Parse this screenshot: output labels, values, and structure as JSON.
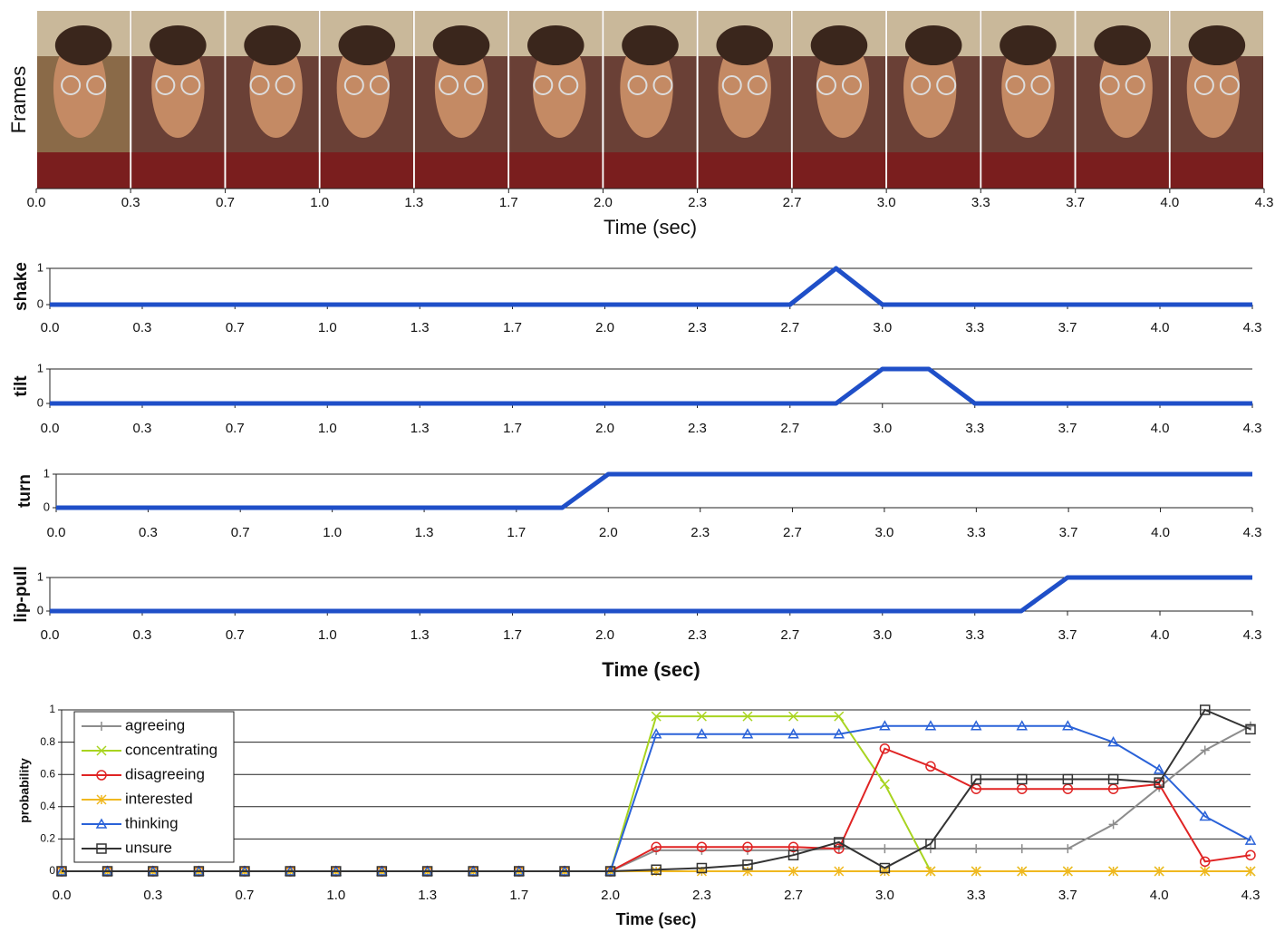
{
  "chart_data": [
    {
      "type": "frames",
      "ylabel": "Frames",
      "xlabel": "Time (sec)",
      "xlim": [
        0,
        4.333
      ],
      "xticks": [
        {
          "value": 0,
          "label": "0.0"
        },
        {
          "value": 0.333,
          "label": "0.3"
        },
        {
          "value": 0.667,
          "label": "0.7"
        },
        {
          "value": 1,
          "label": "1.0"
        },
        {
          "value": 1.333,
          "label": "1.3"
        },
        {
          "value": 1.667,
          "label": "1.7"
        },
        {
          "value": 2,
          "label": "2.0"
        },
        {
          "value": 2.333,
          "label": "2.3"
        },
        {
          "value": 2.667,
          "label": "2.7"
        },
        {
          "value": 3,
          "label": "3.0"
        },
        {
          "value": 3.333,
          "label": "3.3"
        },
        {
          "value": 3.667,
          "label": "3.7"
        },
        {
          "value": 4,
          "label": "4.0"
        },
        {
          "value": 4.333,
          "label": "4.3"
        }
      ]
    },
    {
      "type": "line",
      "ylabel": "shake",
      "color": "#1f4fc8",
      "xlim": [
        0,
        4.333
      ],
      "ylim": [
        0,
        1
      ],
      "yticks": [
        0,
        1
      ],
      "x": [
        0,
        2.667,
        2.833,
        3,
        4.333
      ],
      "values": [
        0,
        0,
        1,
        0,
        0
      ],
      "xticks": [
        {
          "value": 0,
          "label": "0.0"
        },
        {
          "value": 0.333,
          "label": "0.3"
        },
        {
          "value": 0.667,
          "label": "0.7"
        },
        {
          "value": 1,
          "label": "1.0"
        },
        {
          "value": 1.333,
          "label": "1.3"
        },
        {
          "value": 1.667,
          "label": "1.7"
        },
        {
          "value": 2,
          "label": "2.0"
        },
        {
          "value": 2.333,
          "label": "2.3"
        },
        {
          "value": 2.667,
          "label": "2.7"
        },
        {
          "value": 3,
          "label": "3.0"
        },
        {
          "value": 3.333,
          "label": "3.3"
        },
        {
          "value": 3.667,
          "label": "3.7"
        },
        {
          "value": 4,
          "label": "4.0"
        },
        {
          "value": 4.333,
          "label": "4.3"
        }
      ]
    },
    {
      "type": "line",
      "ylabel": "tilt",
      "color": "#1f4fc8",
      "xlim": [
        0,
        4.333
      ],
      "ylim": [
        0,
        1
      ],
      "yticks": [
        0,
        1
      ],
      "x": [
        0,
        2.833,
        3,
        3.167,
        3.333,
        4.333
      ],
      "values": [
        0,
        0,
        1,
        1,
        0,
        0
      ],
      "xticks": [
        {
          "value": 0,
          "label": "0.0"
        },
        {
          "value": 0.333,
          "label": "0.3"
        },
        {
          "value": 0.667,
          "label": "0.7"
        },
        {
          "value": 1,
          "label": "1.0"
        },
        {
          "value": 1.333,
          "label": "1.3"
        },
        {
          "value": 1.667,
          "label": "1.7"
        },
        {
          "value": 2,
          "label": "2.0"
        },
        {
          "value": 2.333,
          "label": "2.3"
        },
        {
          "value": 2.667,
          "label": "2.7"
        },
        {
          "value": 3,
          "label": "3.0"
        },
        {
          "value": 3.333,
          "label": "3.3"
        },
        {
          "value": 3.667,
          "label": "3.7"
        },
        {
          "value": 4,
          "label": "4.0"
        },
        {
          "value": 4.333,
          "label": "4.3"
        }
      ]
    },
    {
      "type": "line",
      "ylabel": "turn",
      "color": "#1f4fc8",
      "xlim": [
        0,
        4.333
      ],
      "ylim": [
        0,
        1
      ],
      "yticks": [
        0,
        1
      ],
      "x": [
        0,
        1.833,
        2,
        4.333
      ],
      "values": [
        0,
        0,
        1,
        1
      ],
      "xticks": [
        {
          "value": 0,
          "label": "0.0"
        },
        {
          "value": 0.333,
          "label": "0.3"
        },
        {
          "value": 0.667,
          "label": "0.7"
        },
        {
          "value": 1,
          "label": "1.0"
        },
        {
          "value": 1.333,
          "label": "1.3"
        },
        {
          "value": 1.667,
          "label": "1.7"
        },
        {
          "value": 2,
          "label": "2.0"
        },
        {
          "value": 2.333,
          "label": "2.3"
        },
        {
          "value": 2.667,
          "label": "2.7"
        },
        {
          "value": 3,
          "label": "3.0"
        },
        {
          "value": 3.333,
          "label": "3.3"
        },
        {
          "value": 3.667,
          "label": "3.7"
        },
        {
          "value": 4,
          "label": "4.0"
        },
        {
          "value": 4.333,
          "label": "4.3"
        }
      ]
    },
    {
      "type": "line",
      "ylabel": "lip-pull",
      "xlabel": "Time (sec)",
      "color": "#1f4fc8",
      "xlim": [
        0,
        4.333
      ],
      "ylim": [
        0,
        1
      ],
      "yticks": [
        0,
        1
      ],
      "x": [
        0,
        3.5,
        3.667,
        4.333
      ],
      "values": [
        0,
        0,
        1,
        1
      ],
      "xticks": [
        {
          "value": 0,
          "label": "0.0"
        },
        {
          "value": 0.333,
          "label": "0.3"
        },
        {
          "value": 0.667,
          "label": "0.7"
        },
        {
          "value": 1,
          "label": "1.0"
        },
        {
          "value": 1.333,
          "label": "1.3"
        },
        {
          "value": 1.667,
          "label": "1.7"
        },
        {
          "value": 2,
          "label": "2.0"
        },
        {
          "value": 2.333,
          "label": "2.3"
        },
        {
          "value": 2.667,
          "label": "2.7"
        },
        {
          "value": 3,
          "label": "3.0"
        },
        {
          "value": 3.333,
          "label": "3.3"
        },
        {
          "value": 3.667,
          "label": "3.7"
        },
        {
          "value": 4,
          "label": "4.0"
        },
        {
          "value": 4.333,
          "label": "4.3"
        }
      ]
    },
    {
      "type": "multiline",
      "ylabel": "probability",
      "xlabel": "Time (sec)",
      "legend": "upper left",
      "xlim": [
        0,
        4.333
      ],
      "ylim": [
        0,
        1
      ],
      "yticks": [
        0,
        0.2,
        0.4,
        0.6,
        0.8,
        1
      ],
      "xticks": [
        {
          "value": 0,
          "label": "0.0"
        },
        {
          "value": 0.333,
          "label": "0.3"
        },
        {
          "value": 0.667,
          "label": "0.7"
        },
        {
          "value": 1,
          "label": "1.0"
        },
        {
          "value": 1.333,
          "label": "1.3"
        },
        {
          "value": 1.667,
          "label": "1.7"
        },
        {
          "value": 2,
          "label": "2.0"
        },
        {
          "value": 2.333,
          "label": "2.3"
        },
        {
          "value": 2.667,
          "label": "2.7"
        },
        {
          "value": 3,
          "label": "3.0"
        },
        {
          "value": 3.333,
          "label": "3.3"
        },
        {
          "value": 3.667,
          "label": "3.7"
        },
        {
          "value": 4,
          "label": "4.0"
        },
        {
          "value": 4.333,
          "label": "4.3"
        }
      ],
      "x": [
        0,
        0.167,
        0.333,
        0.5,
        0.667,
        0.833,
        1,
        1.167,
        1.333,
        1.5,
        1.667,
        1.833,
        2,
        2.167,
        2.333,
        2.5,
        2.667,
        2.833,
        3,
        3.167,
        3.333,
        3.5,
        3.667,
        3.833,
        4,
        4.167,
        4.333
      ],
      "series": [
        {
          "name": "agreeing",
          "color": "#8c8c8c",
          "marker": "plus",
          "values": [
            0,
            0,
            0,
            0,
            0,
            0,
            0,
            0,
            0,
            0,
            0,
            0,
            0,
            0.13,
            0.13,
            0.13,
            0.13,
            0.14,
            0.14,
            0.14,
            0.14,
            0.14,
            0.14,
            0.29,
            0.52,
            0.75,
            0.9
          ]
        },
        {
          "name": "concentrating",
          "color": "#a8d420",
          "marker": "cross",
          "values": [
            0,
            0,
            0,
            0,
            0,
            0,
            0,
            0,
            0,
            0,
            0,
            0,
            0,
            0.96,
            0.96,
            0.96,
            0.96,
            0.96,
            0.54,
            0,
            0,
            0,
            0,
            0,
            0,
            0,
            0
          ]
        },
        {
          "name": "disagreeing",
          "color": "#e02424",
          "marker": "circle",
          "values": [
            0,
            0,
            0,
            0,
            0,
            0,
            0,
            0,
            0,
            0,
            0,
            0,
            0,
            0.15,
            0.15,
            0.15,
            0.15,
            0.14,
            0.76,
            0.65,
            0.51,
            0.51,
            0.51,
            0.51,
            0.54,
            0.06,
            0.1
          ]
        },
        {
          "name": "interested",
          "color": "#f0b820",
          "marker": "star",
          "values": [
            0,
            0,
            0,
            0,
            0,
            0,
            0,
            0,
            0,
            0,
            0,
            0,
            0,
            0,
            0,
            0,
            0,
            0,
            0,
            0,
            0,
            0,
            0,
            0,
            0,
            0,
            0
          ]
        },
        {
          "name": "thinking",
          "color": "#2a62d8",
          "marker": "triangle",
          "values": [
            0,
            0,
            0,
            0,
            0,
            0,
            0,
            0,
            0,
            0,
            0,
            0,
            0,
            0.85,
            0.85,
            0.85,
            0.85,
            0.85,
            0.9,
            0.9,
            0.9,
            0.9,
            0.9,
            0.8,
            0.63,
            0.34,
            0.19
          ]
        },
        {
          "name": "unsure",
          "color": "#333333",
          "marker": "square",
          "values": [
            0,
            0,
            0,
            0,
            0,
            0,
            0,
            0,
            0,
            0,
            0,
            0,
            0,
            0.01,
            0.02,
            0.04,
            0.1,
            0.18,
            0.02,
            0.17,
            0.57,
            0.57,
            0.57,
            0.57,
            0.55,
            1,
            0.88
          ]
        }
      ]
    }
  ]
}
